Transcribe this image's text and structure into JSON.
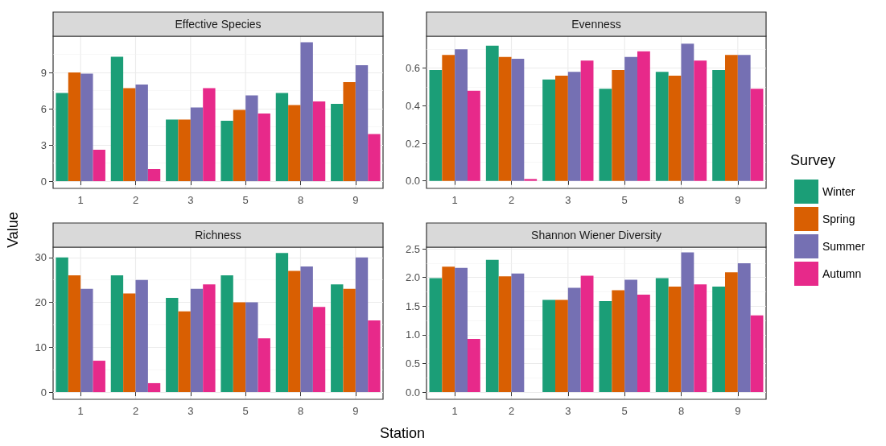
{
  "chart_data": [
    {
      "type": "bar",
      "title": "Effective Species",
      "ylabel": "Value",
      "categories": [
        "1",
        "2",
        "3",
        "5",
        "8",
        "9"
      ],
      "ylim": [
        -0.6,
        12
      ],
      "yticks": [
        0,
        3,
        6,
        9
      ],
      "grid": true,
      "series": [
        {
          "color": "#1b9e77",
          "values": [
            7.3,
            10.3,
            5.1,
            5.0,
            7.3,
            6.4
          ]
        },
        {
          "color": "#d95f02",
          "values": [
            9.0,
            7.7,
            5.1,
            5.9,
            6.3,
            8.2
          ]
        },
        {
          "color": "#7570b3",
          "values": [
            8.9,
            8.0,
            6.1,
            7.1,
            11.5,
            9.6
          ]
        },
        {
          "color": "#e7298a",
          "values": [
            2.6,
            1.0,
            7.7,
            5.6,
            6.6,
            3.9
          ]
        }
      ]
    },
    {
      "type": "bar",
      "title": "Evenness",
      "legend_title": "Survey",
      "legend": "right",
      "categories": [
        "1",
        "2",
        "3",
        "5",
        "8",
        "9"
      ],
      "ylim": [
        -0.04,
        0.77
      ],
      "yticks": [
        {
          "value": 0,
          "label": "0.0"
        },
        {
          "value": 0.2,
          "label": "0.2"
        },
        {
          "value": 0.4,
          "label": "0.4"
        },
        {
          "value": 0.6,
          "label": "0.6"
        }
      ],
      "grid": true,
      "series": [
        {
          "name": "Winter",
          "color": "#1b9e77",
          "values": [
            0.59,
            0.72,
            0.54,
            0.49,
            0.58,
            0.59
          ]
        },
        {
          "name": "Spring",
          "color": "#d95f02",
          "values": [
            0.67,
            0.66,
            0.56,
            0.59,
            0.56,
            0.67
          ]
        },
        {
          "name": "Summer",
          "color": "#7570b3",
          "values": [
            0.7,
            0.65,
            0.58,
            0.66,
            0.73,
            0.67
          ]
        },
        {
          "name": "Autumn",
          "color": "#e7298a",
          "values": [
            0.48,
            0.01,
            0.64,
            0.69,
            0.64,
            0.49
          ]
        }
      ]
    },
    {
      "type": "bar",
      "title": "Richness",
      "xlabel": "Station",
      "categories": [
        "1",
        "2",
        "3",
        "5",
        "8",
        "9"
      ],
      "ylim": [
        -1.6,
        32.3
      ],
      "yticks": [
        0,
        10,
        20,
        30
      ],
      "grid": true,
      "series": [
        {
          "color": "#1b9e77",
          "values": [
            30,
            26,
            21,
            26,
            31,
            24
          ]
        },
        {
          "color": "#d95f02",
          "values": [
            26,
            22,
            18,
            20,
            27,
            23
          ]
        },
        {
          "color": "#7570b3",
          "values": [
            23,
            25,
            23,
            20,
            28,
            30
          ]
        },
        {
          "color": "#e7298a",
          "values": [
            7,
            2,
            24,
            12,
            19,
            16
          ]
        }
      ]
    },
    {
      "type": "bar",
      "title": "Shannon Wiener Diversity",
      "categories": [
        "1",
        "2",
        "3",
        "5",
        "8",
        "9"
      ],
      "ylim": [
        -0.125,
        2.53
      ],
      "yticks": [
        {
          "value": 0,
          "label": "0.0"
        },
        {
          "value": 0.5,
          "label": "0.5"
        },
        {
          "value": 1,
          "label": "1.0"
        },
        {
          "value": 1.5,
          "label": "1.5"
        },
        {
          "value": 2,
          "label": "2.0"
        },
        {
          "value": 2.5,
          "label": "2.5"
        }
      ],
      "grid": true,
      "series": [
        {
          "color": "#1b9e77",
          "values": [
            1.99,
            2.31,
            1.61,
            1.59,
            1.99,
            1.84
          ]
        },
        {
          "color": "#d95f02",
          "values": [
            2.19,
            2.02,
            1.61,
            1.78,
            1.84,
            2.09
          ]
        },
        {
          "color": "#7570b3",
          "values": [
            2.17,
            2.07,
            1.82,
            1.96,
            2.44,
            2.25
          ]
        },
        {
          "color": "#e7298a",
          "values": [
            0.93,
            null,
            2.03,
            1.7,
            1.88,
            1.34
          ]
        }
      ]
    }
  ]
}
